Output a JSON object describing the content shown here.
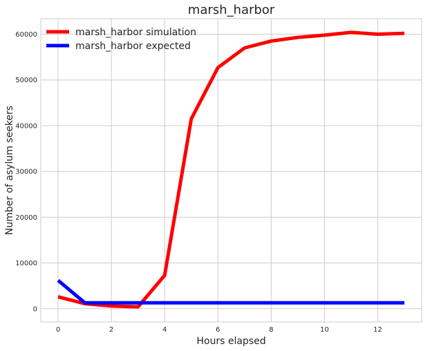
{
  "chart_data": {
    "type": "line",
    "title": "marsh_harbor",
    "xlabel": "Hours elapsed",
    "ylabel": "Number of asylum seekers",
    "xlim": [
      -0.65,
      13.65
    ],
    "ylim": [
      -2900,
      63400
    ],
    "xticks": [
      0,
      2,
      4,
      6,
      8,
      10,
      12
    ],
    "yticks": [
      0,
      10000,
      20000,
      30000,
      40000,
      50000,
      60000
    ],
    "grid": true,
    "legend_position": "top-left",
    "x": [
      0,
      1,
      2,
      3,
      4,
      5,
      6,
      7,
      8,
      9,
      10,
      11,
      12,
      13
    ],
    "series": [
      {
        "name": "marsh_harbor simulation",
        "color": "#ff0000",
        "values": [
          2600,
          1100,
          600,
          400,
          7300,
          41500,
          52700,
          57000,
          58500,
          59300,
          59800,
          60400,
          60000,
          60200
        ]
      },
      {
        "name": "marsh_harbor expected",
        "color": "#0000ff",
        "values": [
          6200,
          1300,
          1300,
          1300,
          1300,
          1300,
          1300,
          1300,
          1300,
          1300,
          1300,
          1300,
          1300,
          1300
        ]
      }
    ]
  }
}
